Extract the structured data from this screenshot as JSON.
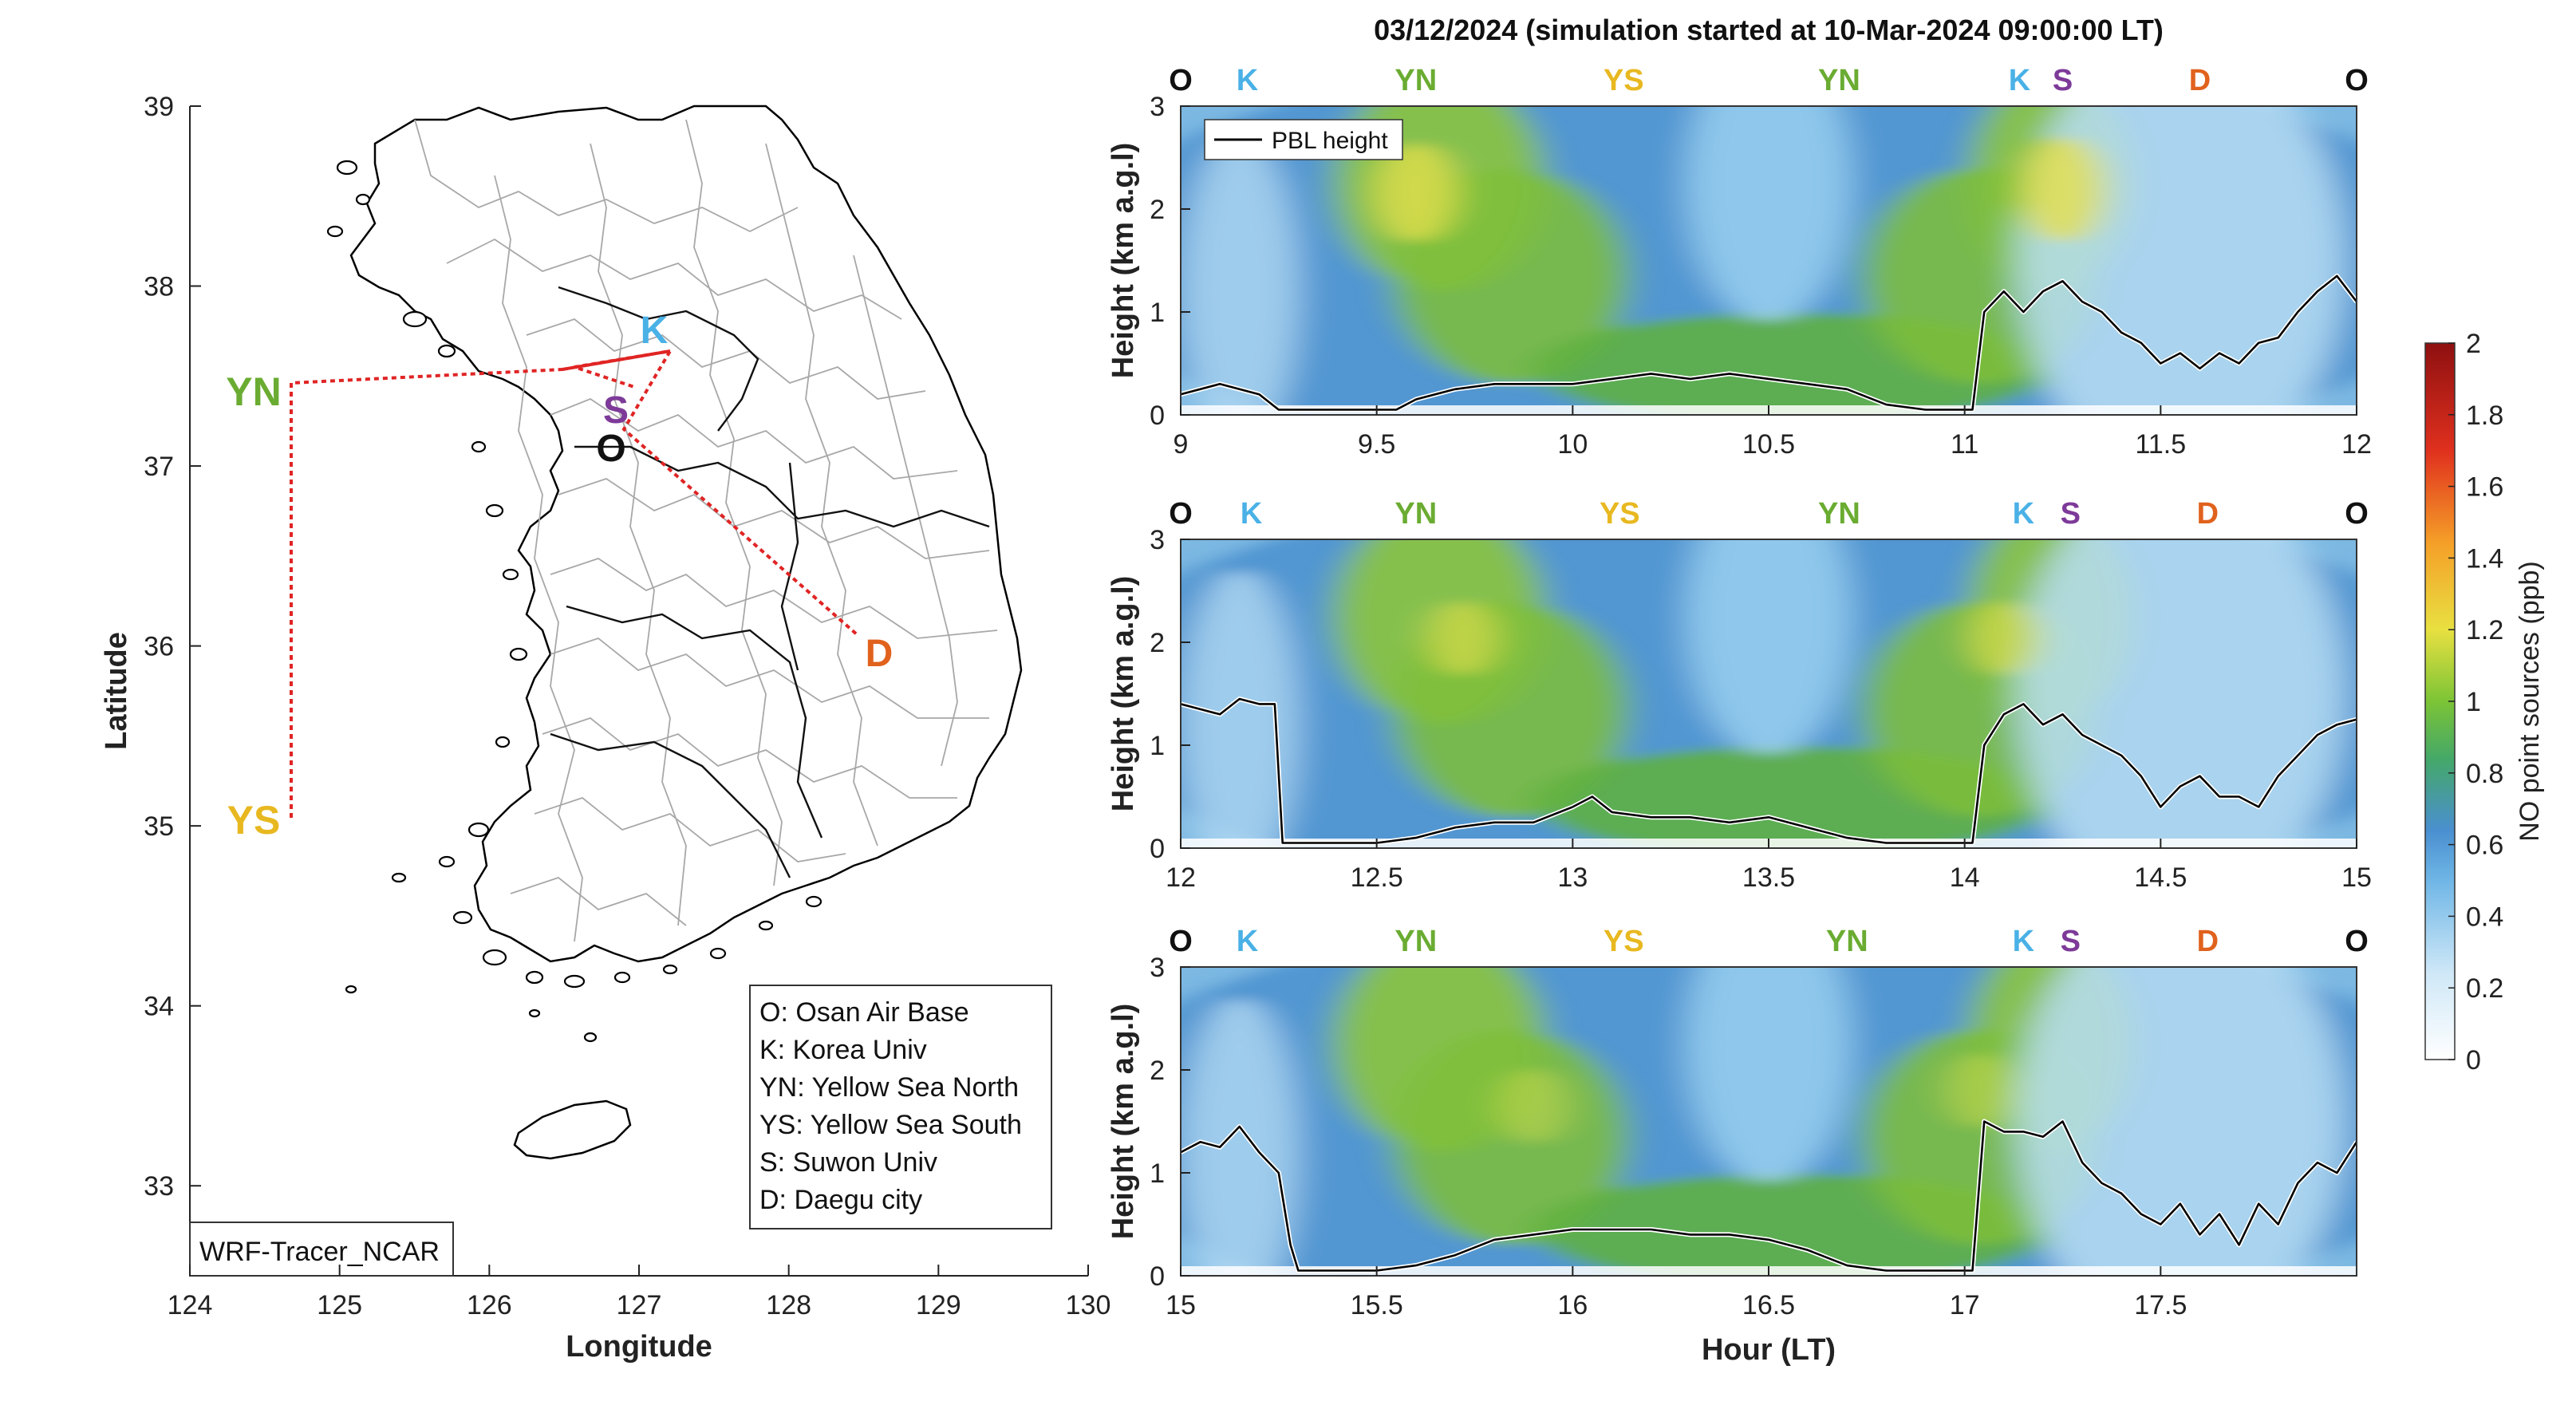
{
  "title": "03/12/2024 (simulation started at 10-Mar-2024 09:00:00 LT)",
  "colors": {
    "O": "#111111",
    "K": "#4ab1e6",
    "YN": "#6aac32",
    "YS": "#e8b820",
    "S": "#7d3a99",
    "D": "#e0621d",
    "track": "#e02424",
    "pbl": "#000000"
  },
  "map": {
    "xlabel": "Longitude",
    "ylabel": "Latitude",
    "xlim": [
      124,
      130
    ],
    "ylim": [
      32.5,
      39
    ],
    "xticks": [
      "124",
      "125",
      "126",
      "127",
      "128",
      "129",
      "130"
    ],
    "yticks": [
      "33",
      "34",
      "35",
      "36",
      "37",
      "38",
      "39"
    ],
    "model_label": "WRF-Tracer_NCAR",
    "sites": [
      {
        "code": "O",
        "lon": 126.85,
        "lat": 37.1
      },
      {
        "code": "K",
        "lon": 127.15,
        "lat": 37.65
      },
      {
        "code": "YN",
        "lon": 124.55,
        "lat": 37.45
      },
      {
        "code": "YS",
        "lon": 124.55,
        "lat": 35.05
      },
      {
        "code": "S",
        "lon": 126.9,
        "lat": 37.38
      },
      {
        "code": "D",
        "lon": 128.55,
        "lat": 35.88
      }
    ],
    "legend": [
      "O: Osan Air Base",
      "K: Korea Univ",
      "YN: Yellow Sea North",
      "YS: Yellow Sea South",
      "S: Suwon Univ",
      "D: Daegu city"
    ]
  },
  "chart_data": [
    {
      "type": "heatmap",
      "xlabel": "",
      "ylabel": "Height (km a.g.l)",
      "xlim": [
        9,
        12
      ],
      "ylim": [
        0,
        3
      ],
      "xticks": [
        "9",
        "9.5",
        "10",
        "10.5",
        "11",
        "11.5",
        "12"
      ],
      "yticks": [
        "0",
        "1",
        "2",
        "3"
      ],
      "legend": "PBL height",
      "legend_position": "top-left",
      "site_sequence": [
        {
          "code": "O",
          "x": 9.0
        },
        {
          "code": "K",
          "x": 9.17
        },
        {
          "code": "YN",
          "x": 9.6
        },
        {
          "code": "YS",
          "x": 10.13
        },
        {
          "code": "YN",
          "x": 10.68
        },
        {
          "code": "K",
          "x": 11.14
        },
        {
          "code": "S",
          "x": 11.25
        },
        {
          "code": "D",
          "x": 11.6
        },
        {
          "code": "O",
          "x": 12.0
        }
      ],
      "pbl_height": {
        "x": [
          9.0,
          9.1,
          9.2,
          9.25,
          9.3,
          9.4,
          9.5,
          9.55,
          9.6,
          9.7,
          9.8,
          9.9,
          10.0,
          10.1,
          10.2,
          10.3,
          10.4,
          10.5,
          10.6,
          10.7,
          10.8,
          10.9,
          11.0,
          11.02,
          11.05,
          11.1,
          11.15,
          11.2,
          11.25,
          11.3,
          11.35,
          11.4,
          11.45,
          11.5,
          11.55,
          11.6,
          11.65,
          11.7,
          11.75,
          11.8,
          11.85,
          11.9,
          11.95,
          12.0
        ],
        "y": [
          0.2,
          0.3,
          0.2,
          0.05,
          0.05,
          0.05,
          0.05,
          0.05,
          0.15,
          0.25,
          0.3,
          0.3,
          0.3,
          0.35,
          0.4,
          0.35,
          0.4,
          0.35,
          0.3,
          0.25,
          0.1,
          0.05,
          0.05,
          0.05,
          1.0,
          1.2,
          1.0,
          1.2,
          1.3,
          1.1,
          1.0,
          0.8,
          0.7,
          0.5,
          0.6,
          0.45,
          0.6,
          0.5,
          0.7,
          0.75,
          1.0,
          1.2,
          1.35,
          1.1
        ]
      }
    },
    {
      "type": "heatmap",
      "xlabel": "",
      "ylabel": "Height (km a.g.l)",
      "xlim": [
        12,
        15
      ],
      "ylim": [
        0,
        3
      ],
      "xticks": [
        "12",
        "12.5",
        "13",
        "13.5",
        "14",
        "14.5",
        "15"
      ],
      "yticks": [
        "0",
        "1",
        "2",
        "3"
      ],
      "site_sequence": [
        {
          "code": "O",
          "x": 12.0
        },
        {
          "code": "K",
          "x": 12.18
        },
        {
          "code": "YN",
          "x": 12.6
        },
        {
          "code": "YS",
          "x": 13.12
        },
        {
          "code": "YN",
          "x": 13.68
        },
        {
          "code": "K",
          "x": 14.15
        },
        {
          "code": "S",
          "x": 14.27
        },
        {
          "code": "D",
          "x": 14.62
        },
        {
          "code": "O",
          "x": 15.0
        }
      ],
      "pbl_height": {
        "x": [
          12.0,
          12.05,
          12.1,
          12.15,
          12.2,
          12.24,
          12.26,
          12.3,
          12.4,
          12.5,
          12.6,
          12.7,
          12.8,
          12.9,
          13.0,
          13.05,
          13.1,
          13.2,
          13.3,
          13.4,
          13.5,
          13.6,
          13.7,
          13.8,
          13.9,
          14.0,
          14.02,
          14.05,
          14.1,
          14.15,
          14.2,
          14.25,
          14.3,
          14.35,
          14.4,
          14.45,
          14.5,
          14.55,
          14.6,
          14.65,
          14.7,
          14.75,
          14.8,
          14.85,
          14.9,
          14.95,
          15.0
        ],
        "y": [
          1.4,
          1.35,
          1.3,
          1.45,
          1.4,
          1.4,
          0.05,
          0.05,
          0.05,
          0.05,
          0.1,
          0.2,
          0.25,
          0.25,
          0.4,
          0.5,
          0.35,
          0.3,
          0.3,
          0.25,
          0.3,
          0.2,
          0.1,
          0.05,
          0.05,
          0.05,
          0.05,
          1.0,
          1.3,
          1.4,
          1.2,
          1.3,
          1.1,
          1.0,
          0.9,
          0.7,
          0.4,
          0.6,
          0.7,
          0.5,
          0.5,
          0.4,
          0.7,
          0.9,
          1.1,
          1.2,
          1.25
        ]
      }
    },
    {
      "type": "heatmap",
      "xlabel": "Hour (LT)",
      "ylabel": "Height (km a.g.l)",
      "xlim": [
        15,
        18
      ],
      "ylim": [
        0,
        3
      ],
      "xticks": [
        "15",
        "15.5",
        "16",
        "16.5",
        "17",
        "17.5"
      ],
      "yticks": [
        "0",
        "1",
        "2",
        "3"
      ],
      "site_sequence": [
        {
          "code": "O",
          "x": 15.0
        },
        {
          "code": "K",
          "x": 15.17
        },
        {
          "code": "YN",
          "x": 15.6
        },
        {
          "code": "YS",
          "x": 16.13
        },
        {
          "code": "YN",
          "x": 16.7
        },
        {
          "code": "K",
          "x": 17.15
        },
        {
          "code": "S",
          "x": 17.27
        },
        {
          "code": "D",
          "x": 17.62
        },
        {
          "code": "O",
          "x": 18.0
        }
      ],
      "pbl_height": {
        "x": [
          15.0,
          15.05,
          15.1,
          15.15,
          15.2,
          15.25,
          15.28,
          15.3,
          15.4,
          15.5,
          15.6,
          15.7,
          15.8,
          15.9,
          16.0,
          16.1,
          16.2,
          16.3,
          16.4,
          16.5,
          16.6,
          16.7,
          16.8,
          16.9,
          17.0,
          17.02,
          17.05,
          17.1,
          17.15,
          17.2,
          17.25,
          17.3,
          17.35,
          17.4,
          17.45,
          17.5,
          17.55,
          17.6,
          17.65,
          17.7,
          17.75,
          17.8,
          17.85,
          17.9,
          17.95,
          18.0
        ],
        "y": [
          1.2,
          1.3,
          1.25,
          1.45,
          1.2,
          1.0,
          0.3,
          0.05,
          0.05,
          0.05,
          0.1,
          0.2,
          0.35,
          0.4,
          0.45,
          0.45,
          0.45,
          0.4,
          0.4,
          0.35,
          0.25,
          0.1,
          0.05,
          0.05,
          0.05,
          0.05,
          1.5,
          1.4,
          1.4,
          1.35,
          1.5,
          1.1,
          0.9,
          0.8,
          0.6,
          0.5,
          0.7,
          0.4,
          0.6,
          0.3,
          0.7,
          0.5,
          0.9,
          1.1,
          1.0,
          1.3
        ]
      }
    }
  ],
  "colorbar": {
    "label": "NO point sources (ppb)",
    "range": [
      0,
      2
    ],
    "ticks": [
      "0",
      "0.2",
      "0.4",
      "0.6",
      "0.8",
      "1",
      "1.2",
      "1.4",
      "1.6",
      "1.8",
      "2"
    ]
  }
}
